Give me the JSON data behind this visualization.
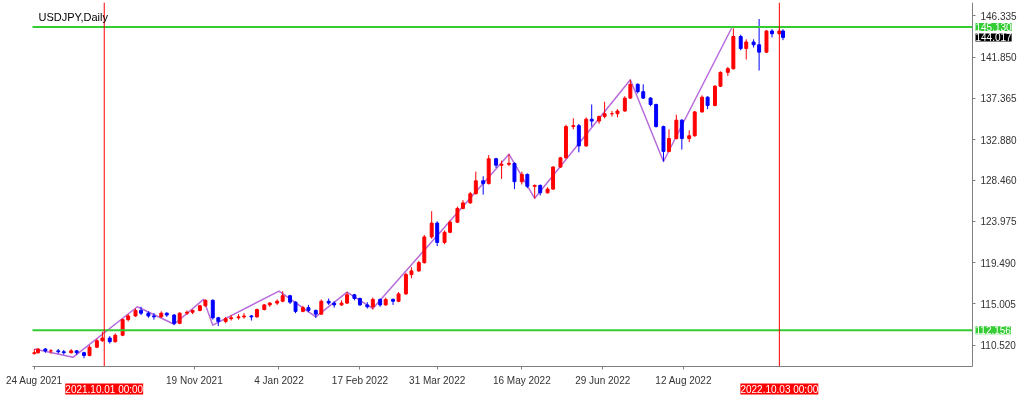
{
  "chart_data": {
    "type": "candlestick",
    "title": "USDJPY,Daily",
    "x": [
      "2021-08-24",
      "2021-08-26",
      "2021-08-30",
      "2021-09-02",
      "2021-09-06",
      "2021-09-09",
      "2021-09-13",
      "2021-09-16",
      "2021-09-20",
      "2021-09-23",
      "2021-09-27",
      "2021-09-30",
      "2021-10-04",
      "2021-10-07",
      "2021-10-11",
      "2021-10-14",
      "2021-10-18",
      "2021-10-21",
      "2021-10-25",
      "2021-10-28",
      "2021-11-01",
      "2021-11-04",
      "2021-11-08",
      "2021-11-11",
      "2021-11-15",
      "2021-11-18",
      "2021-11-22",
      "2021-11-25",
      "2021-11-29",
      "2021-12-02",
      "2021-12-06",
      "2021-12-09",
      "2021-12-13",
      "2021-12-16",
      "2021-12-20",
      "2021-12-23",
      "2021-12-27",
      "2021-12-30",
      "2022-01-03",
      "2022-01-06",
      "2022-01-10",
      "2022-01-13",
      "2022-01-17",
      "2022-01-20",
      "2022-01-24",
      "2022-01-27",
      "2022-01-31",
      "2022-02-03",
      "2022-02-07",
      "2022-02-10",
      "2022-02-14",
      "2022-02-17",
      "2022-02-21",
      "2022-02-24",
      "2022-02-28",
      "2022-03-03",
      "2022-03-07",
      "2022-03-10",
      "2022-03-14",
      "2022-03-17",
      "2022-03-21",
      "2022-03-24",
      "2022-03-28",
      "2022-03-31",
      "2022-04-04",
      "2022-04-07",
      "2022-04-11",
      "2022-04-14",
      "2022-04-18",
      "2022-04-21",
      "2022-04-25",
      "2022-04-28",
      "2022-05-02",
      "2022-05-05",
      "2022-05-09",
      "2022-05-12",
      "2022-05-16",
      "2022-05-19",
      "2022-05-23",
      "2022-05-26",
      "2022-05-30",
      "2022-06-02",
      "2022-06-06",
      "2022-06-09",
      "2022-06-13",
      "2022-06-16",
      "2022-06-20",
      "2022-06-23",
      "2022-06-27",
      "2022-06-30",
      "2022-07-04",
      "2022-07-07",
      "2022-07-11",
      "2022-07-14",
      "2022-07-18",
      "2022-07-21",
      "2022-07-25",
      "2022-07-28",
      "2022-08-01",
      "2022-08-04",
      "2022-08-08",
      "2022-08-11",
      "2022-08-15",
      "2022-08-18",
      "2022-08-22",
      "2022-08-25",
      "2022-08-29",
      "2022-09-01",
      "2022-09-05",
      "2022-09-08",
      "2022-09-12",
      "2022-09-15",
      "2022-09-19",
      "2022-09-22",
      "2022-09-26",
      "2022-09-29",
      "2022-10-03",
      "2022-10-05"
    ],
    "ohlc": [
      [
        109.6,
        110.1,
        109.5,
        109.7
      ],
      [
        109.7,
        110.2,
        109.6,
        110.1
      ],
      [
        110.1,
        110.2,
        109.7,
        109.9
      ],
      [
        109.9,
        110.1,
        109.6,
        109.9
      ],
      [
        109.9,
        110.1,
        109.6,
        109.8
      ],
      [
        109.8,
        110.0,
        109.5,
        109.7
      ],
      [
        109.7,
        110.1,
        109.6,
        109.9
      ],
      [
        109.9,
        110.0,
        109.5,
        109.7
      ],
      [
        109.7,
        109.8,
        109.1,
        109.4
      ],
      [
        109.4,
        110.5,
        109.3,
        110.3
      ],
      [
        110.3,
        111.2,
        110.2,
        111.0
      ],
      [
        111.0,
        112.0,
        110.9,
        111.3
      ],
      [
        111.3,
        111.5,
        110.7,
        110.9
      ],
      [
        110.9,
        111.8,
        110.8,
        111.6
      ],
      [
        111.6,
        113.4,
        111.5,
        113.3
      ],
      [
        113.3,
        113.9,
        113.1,
        113.7
      ],
      [
        113.7,
        114.5,
        113.6,
        114.3
      ],
      [
        114.3,
        114.7,
        113.8,
        114.0
      ],
      [
        114.0,
        114.2,
        113.5,
        113.7
      ],
      [
        113.7,
        114.0,
        113.3,
        113.6
      ],
      [
        113.6,
        114.2,
        113.5,
        114.0
      ],
      [
        114.0,
        114.1,
        113.6,
        113.8
      ],
      [
        113.8,
        113.9,
        112.7,
        112.9
      ],
      [
        112.9,
        114.1,
        112.8,
        114.0
      ],
      [
        114.0,
        114.3,
        113.8,
        114.1
      ],
      [
        114.1,
        114.4,
        113.9,
        114.3
      ],
      [
        114.3,
        114.9,
        114.2,
        114.8
      ],
      [
        114.8,
        115.5,
        114.7,
        115.4
      ],
      [
        115.4,
        115.5,
        113.3,
        113.5
      ],
      [
        113.5,
        113.6,
        112.6,
        113.1
      ],
      [
        113.1,
        113.6,
        112.9,
        113.4
      ],
      [
        113.4,
        113.8,
        113.2,
        113.5
      ],
      [
        113.5,
        113.9,
        113.3,
        113.6
      ],
      [
        113.6,
        114.0,
        113.4,
        113.7
      ],
      [
        113.7,
        113.8,
        113.2,
        113.6
      ],
      [
        113.6,
        114.5,
        113.5,
        114.4
      ],
      [
        114.4,
        115.0,
        114.3,
        114.9
      ],
      [
        114.9,
        115.2,
        114.7,
        115.1
      ],
      [
        115.1,
        115.5,
        114.9,
        115.3
      ],
      [
        115.3,
        116.4,
        115.2,
        115.9
      ],
      [
        115.9,
        116.0,
        115.0,
        115.2
      ],
      [
        115.2,
        115.3,
        114.0,
        114.2
      ],
      [
        114.2,
        114.8,
        114.1,
        114.6
      ],
      [
        114.6,
        114.9,
        114.1,
        114.3
      ],
      [
        114.3,
        114.4,
        113.5,
        113.9
      ],
      [
        113.9,
        115.5,
        113.8,
        115.3
      ],
      [
        115.3,
        115.6,
        114.9,
        115.1
      ],
      [
        115.1,
        115.3,
        114.6,
        114.9
      ],
      [
        114.9,
        115.4,
        114.8,
        115.1
      ],
      [
        115.1,
        116.3,
        115.0,
        116.0
      ],
      [
        116.0,
        116.1,
        115.4,
        115.6
      ],
      [
        115.6,
        115.7,
        114.8,
        114.9
      ],
      [
        114.9,
        115.2,
        114.5,
        114.7
      ],
      [
        114.7,
        115.7,
        114.4,
        115.5
      ],
      [
        115.5,
        115.6,
        114.7,
        114.9
      ],
      [
        114.9,
        115.7,
        114.8,
        115.5
      ],
      [
        115.5,
        115.6,
        114.9,
        115.3
      ],
      [
        115.3,
        116.3,
        115.2,
        116.1
      ],
      [
        116.1,
        118.4,
        116.0,
        118.2
      ],
      [
        118.2,
        119.0,
        117.8,
        118.6
      ],
      [
        118.6,
        119.7,
        118.5,
        119.5
      ],
      [
        119.5,
        122.5,
        119.4,
        122.3
      ],
      [
        122.3,
        125.1,
        122.1,
        123.8
      ],
      [
        123.8,
        124.0,
        121.3,
        121.7
      ],
      [
        121.7,
        123.0,
        121.5,
        122.8
      ],
      [
        122.8,
        124.1,
        122.7,
        123.9
      ],
      [
        123.9,
        125.6,
        123.8,
        125.4
      ],
      [
        125.4,
        126.3,
        125.3,
        126.0
      ],
      [
        126.0,
        127.2,
        125.9,
        127.0
      ],
      [
        127.0,
        129.4,
        126.9,
        128.4
      ],
      [
        128.4,
        128.9,
        126.9,
        128.1
      ],
      [
        128.1,
        131.2,
        128.0,
        130.8
      ],
      [
        130.8,
        130.9,
        129.8,
        130.1
      ],
      [
        130.1,
        130.6,
        128.6,
        130.2
      ],
      [
        130.2,
        131.3,
        130.0,
        130.3
      ],
      [
        130.3,
        130.4,
        127.5,
        128.3
      ],
      [
        128.3,
        129.4,
        128.0,
        129.1
      ],
      [
        129.1,
        129.2,
        127.6,
        127.8
      ],
      [
        127.8,
        128.0,
        126.5,
        127.9
      ],
      [
        127.9,
        128.0,
        126.8,
        127.1
      ],
      [
        127.1,
        127.7,
        127.0,
        127.5
      ],
      [
        127.5,
        130.0,
        127.4,
        129.9
      ],
      [
        129.9,
        131.0,
        129.8,
        130.9
      ],
      [
        130.9,
        134.5,
        130.8,
        134.3
      ],
      [
        134.3,
        135.2,
        134.0,
        134.4
      ],
      [
        134.4,
        134.6,
        131.5,
        132.2
      ],
      [
        132.2,
        135.3,
        132.1,
        135.1
      ],
      [
        135.1,
        136.7,
        134.3,
        134.9
      ],
      [
        134.9,
        135.5,
        134.6,
        135.4
      ],
      [
        135.4,
        137.0,
        135.2,
        135.7
      ],
      [
        135.7,
        136.0,
        135.4,
        135.7
      ],
      [
        135.7,
        136.2,
        135.3,
        136.0
      ],
      [
        136.0,
        137.6,
        135.9,
        137.4
      ],
      [
        137.4,
        139.4,
        137.3,
        138.9
      ],
      [
        138.9,
        139.0,
        137.9,
        138.1
      ],
      [
        138.1,
        138.9,
        137.3,
        137.4
      ],
      [
        137.4,
        137.5,
        136.5,
        136.7
      ],
      [
        136.7,
        136.8,
        134.2,
        134.3
      ],
      [
        134.3,
        134.4,
        130.5,
        131.6
      ],
      [
        131.6,
        134.0,
        131.5,
        133.0
      ],
      [
        133.0,
        135.6,
        132.9,
        135.0
      ],
      [
        135.0,
        135.1,
        131.8,
        133.0
      ],
      [
        133.0,
        133.9,
        132.6,
        133.3
      ],
      [
        133.3,
        136.0,
        133.2,
        135.9
      ],
      [
        135.9,
        137.7,
        135.8,
        137.5
      ],
      [
        137.5,
        137.6,
        136.2,
        136.6
      ],
      [
        136.6,
        138.8,
        136.5,
        138.7
      ],
      [
        138.7,
        140.3,
        138.6,
        140.2
      ],
      [
        140.2,
        140.8,
        139.8,
        140.6
      ],
      [
        140.6,
        145.0,
        140.5,
        144.1
      ],
      [
        144.1,
        144.3,
        142.6,
        142.8
      ],
      [
        142.8,
        143.8,
        141.6,
        143.5
      ],
      [
        143.5,
        143.8,
        142.9,
        143.2
      ],
      [
        143.2,
        146.0,
        140.4,
        142.4
      ],
      [
        142.4,
        144.8,
        142.3,
        144.7
      ],
      [
        144.7,
        144.9,
        144.0,
        144.4
      ],
      [
        144.4,
        145.1,
        144.3,
        144.7
      ],
      [
        144.7,
        144.9,
        143.7,
        144.0
      ]
    ],
    "colors": [
      "#ff0000",
      "#ff0000",
      "#0000ff",
      "#ff0000",
      "#0000ff",
      "#0000ff",
      "#ff0000",
      "#0000ff",
      "#0000ff",
      "#ff0000",
      "#ff0000",
      "#ff0000",
      "#0000ff",
      "#ff0000",
      "#ff0000",
      "#ff0000",
      "#ff0000",
      "#0000ff",
      "#0000ff",
      "#0000ff",
      "#ff0000",
      "#0000ff",
      "#0000ff",
      "#ff0000",
      "#ff0000",
      "#ff0000",
      "#ff0000",
      "#ff0000",
      "#0000ff",
      "#0000ff",
      "#ff0000",
      "#ff0000",
      "#ff0000",
      "#ff0000",
      "#0000ff",
      "#ff0000",
      "#ff0000",
      "#ff0000",
      "#ff0000",
      "#ff0000",
      "#0000ff",
      "#0000ff",
      "#ff0000",
      "#0000ff",
      "#0000ff",
      "#ff0000",
      "#0000ff",
      "#0000ff",
      "#ff0000",
      "#ff0000",
      "#0000ff",
      "#0000ff",
      "#0000ff",
      "#ff0000",
      "#0000ff",
      "#ff0000",
      "#0000ff",
      "#ff0000",
      "#ff0000",
      "#ff0000",
      "#ff0000",
      "#ff0000",
      "#ff0000",
      "#0000ff",
      "#ff0000",
      "#ff0000",
      "#ff0000",
      "#ff0000",
      "#ff0000",
      "#ff0000",
      "#0000ff",
      "#ff0000",
      "#0000ff",
      "#ff0000",
      "#ff0000",
      "#0000ff",
      "#ff0000",
      "#0000ff",
      "#ff0000",
      "#0000ff",
      "#ff0000",
      "#ff0000",
      "#ff0000",
      "#ff0000",
      "#ff0000",
      "#0000ff",
      "#ff0000",
      "#0000ff",
      "#ff0000",
      "#ff0000",
      "#ff0000",
      "#ff0000",
      "#ff0000",
      "#ff0000",
      "#0000ff",
      "#0000ff",
      "#0000ff",
      "#0000ff",
      "#0000ff",
      "#ff0000",
      "#ff0000",
      "#0000ff",
      "#ff0000",
      "#ff0000",
      "#ff0000",
      "#0000ff",
      "#ff0000",
      "#ff0000",
      "#ff0000",
      "#ff0000",
      "#0000ff",
      "#ff0000",
      "#0000ff",
      "#0000ff",
      "#ff0000",
      "#0000ff",
      "#ff0000",
      "#0000ff"
    ],
    "series": [
      {
        "type": "line",
        "color": "#b86bdb",
        "x": [
          "2021-08-24",
          "2021-09-14",
          "2021-10-19",
          "2021-11-08",
          "2021-11-24",
          "2021-11-29",
          "2022-01-04",
          "2022-01-24",
          "2022-02-10",
          "2022-02-24",
          "2022-05-09",
          "2022-05-23",
          "2022-07-14",
          "2022-08-01",
          "2022-09-07"
        ],
        "values": [
          110.1,
          109.2,
          114.7,
          112.8,
          115.5,
          112.7,
          116.4,
          113.6,
          116.3,
          114.5,
          131.3,
          126.5,
          139.4,
          130.5,
          145.0
        ]
      }
    ],
    "xlim": [
      "2021-08-23",
      "2023-01-16"
    ],
    "xticks": [
      {
        "value": "2021-08-24",
        "label": "24 Aug 2021"
      },
      {
        "value": "2021-11-19",
        "label": "19 Nov 2021"
      },
      {
        "value": "2022-01-04",
        "label": "4 Jan 2022"
      },
      {
        "value": "2022-02-17",
        "label": "17 Feb 2022"
      },
      {
        "value": "2022-03-31",
        "label": "31 Mar 2022"
      },
      {
        "value": "2022-05-16",
        "label": "16 May 2022"
      },
      {
        "value": "2022-06-29",
        "label": "29 Jun 2022"
      },
      {
        "value": "2022-08-12",
        "label": "12 Aug 2022"
      }
    ],
    "ylim": [
      108.2,
      147.8
    ],
    "yticks": [
      {
        "value": 110.52,
        "label": "110.520"
      },
      {
        "value": 115.005,
        "label": "115.005"
      },
      {
        "value": 119.49,
        "label": "119.490"
      },
      {
        "value": 123.975,
        "label": "123.975"
      },
      {
        "value": 128.46,
        "label": "128.460"
      },
      {
        "value": 132.88,
        "label": "132.880"
      },
      {
        "value": 137.365,
        "label": "137.365"
      },
      {
        "value": 141.85,
        "label": "141.850"
      },
      {
        "value": 146.335,
        "label": "146.335"
      }
    ],
    "ref_lines": [
      {
        "axis": "y",
        "value": 145.13,
        "label": "145.130",
        "color": "#33cc33"
      },
      {
        "axis": "y",
        "value": 112.156,
        "label": "112.156",
        "color": "#33cc33"
      },
      {
        "axis": "x",
        "value": "2021-10-01",
        "label": "2021.10.01 00:00",
        "color": "#ff0000"
      },
      {
        "axis": "x",
        "value": "2022-10-03",
        "label": "2022.10.03 00:00",
        "color": "#ff0000"
      }
    ],
    "annotations": [
      "144.017"
    ],
    "grid": false
  }
}
